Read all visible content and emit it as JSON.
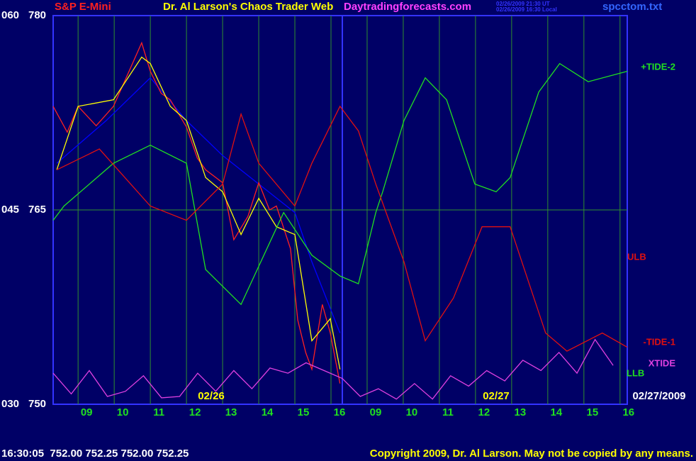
{
  "chart_data": {
    "type": "line",
    "title": "S&P E-Mini",
    "subtitle": "Dr. Al Larson's Chaos Trader Web",
    "site": "Daytradingforecasts.com",
    "timestamps": [
      "02/26/2009 21:30 UT",
      "02/26/2009 16:30 Local"
    ],
    "file": "spcctom.txt",
    "footer": "16:30:05  752.00 752.25 752.00 752.25",
    "copyright": "Copyright 2009, Dr. Al Larson. May not be copied by any means.",
    "annotations": [
      "02/26",
      "02/27",
      "02/27/2009",
      "ULB",
      "LLB"
    ],
    "xlim": [
      -0.69,
      15.2
    ],
    "ylim": [
      750,
      780
    ],
    "yticks": [
      750,
      765,
      780
    ],
    "y2lim": [
      30,
      60
    ],
    "y2ticks": [
      {
        "value": 30,
        "label": "030"
      },
      {
        "value": 45,
        "label": "045"
      },
      {
        "value": 60,
        "label": "060"
      }
    ],
    "xticks": [
      {
        "value": 0,
        "label": "09"
      },
      {
        "value": 1,
        "label": "10"
      },
      {
        "value": 2,
        "label": "11"
      },
      {
        "value": 3,
        "label": "12"
      },
      {
        "value": 4,
        "label": "13"
      },
      {
        "value": 5,
        "label": "14"
      },
      {
        "value": 6,
        "label": "15"
      },
      {
        "value": 7,
        "label": "16"
      },
      {
        "value": 8,
        "label": "09"
      },
      {
        "value": 9,
        "label": "10"
      },
      {
        "value": 10,
        "label": "11"
      },
      {
        "value": 11,
        "label": "12"
      },
      {
        "value": 12,
        "label": "13"
      },
      {
        "value": 13,
        "label": "14"
      },
      {
        "value": 14,
        "label": "15"
      },
      {
        "value": 15,
        "label": "16"
      }
    ],
    "grid": true,
    "series": [
      {
        "color": "#0000ff",
        "x": [
          -0.59,
          0.78,
          2,
          3,
          4,
          5,
          6,
          6.47,
          7.25
        ],
        "values": [
          768.6,
          771.9,
          775.2,
          771.9,
          769.2,
          767.0,
          764.8,
          761.0,
          755.5
        ]
      },
      {
        "color": "#ff2020",
        "x": [
          -0.69,
          -0.3,
          0,
          0.5,
          0.98,
          1.3,
          1.76,
          2,
          2.3,
          2.55,
          3,
          3.3,
          3.53,
          4,
          4.31,
          4.7,
          5,
          5.3,
          5.49,
          5.88,
          6.08,
          6.3,
          6.47,
          6.76,
          6.98,
          7.25
        ],
        "values": [
          773.0,
          771.0,
          773.0,
          771.5,
          773.0,
          775.0,
          777.9,
          775.7,
          774.0,
          773.5,
          771.4,
          769.0,
          768.1,
          767.1,
          762.7,
          764.5,
          767.1,
          765.0,
          765.3,
          762.0,
          756.5,
          754.0,
          752.7,
          757.7,
          755.5,
          751.6
        ]
      },
      {
        "color": "#ffff00",
        "x": [
          -0.59,
          0,
          0.98,
          1.76,
          2,
          2.55,
          3,
          3.53,
          4,
          4.51,
          5,
          5.49,
          6,
          6.47,
          6.98,
          7.25
        ],
        "values": [
          768.1,
          773.0,
          773.5,
          776.8,
          776.3,
          773.0,
          771.9,
          767.5,
          766.4,
          763.1,
          765.9,
          763.7,
          763.1,
          754.9,
          756.6,
          752.7
        ]
      },
      {
        "name": "+TIDE-2",
        "color": "#20e020",
        "x": [
          -0.69,
          -0.39,
          0.98,
          2,
          3,
          3.53,
          4.51,
          5.69,
          6.47,
          7.25,
          7.76,
          8.24,
          8.43,
          9.02,
          9.61,
          10.2,
          10.98,
          11.57,
          11.96,
          12.75,
          13.33,
          14.12,
          15.2
        ],
        "values": [
          764.2,
          765.3,
          768.6,
          770.0,
          768.6,
          760.4,
          757.7,
          764.8,
          761.5,
          759.9,
          759.3,
          764.8,
          766.4,
          771.9,
          775.2,
          773.5,
          767.0,
          766.4,
          767.5,
          774.1,
          776.3,
          774.9,
          775.7
        ]
      },
      {
        "name": "-TIDE-1",
        "color": "#e01010",
        "x": [
          -0.59,
          0.59,
          2,
          3,
          4,
          4.51,
          5,
          6,
          6.47,
          7.25,
          7.76,
          8.24,
          9.02,
          9.61,
          10.39,
          11.18,
          11.96,
          12.94,
          13.53,
          14.51,
          15.2
        ],
        "values": [
          768.1,
          769.7,
          765.3,
          764.2,
          767.0,
          772.4,
          768.6,
          765.3,
          768.6,
          773.0,
          771.1,
          767.0,
          761.0,
          754.9,
          758.2,
          763.7,
          763.7,
          755.5,
          754.1,
          755.5,
          754.4
        ]
      },
      {
        "name": "XTIDE",
        "color": "#e040e0",
        "x": [
          -0.69,
          -0.19,
          0.31,
          0.81,
          1.31,
          1.81,
          2.31,
          2.81,
          3.31,
          3.81,
          4.31,
          4.81,
          5.31,
          5.81,
          6.31,
          6.81,
          7.31,
          7.81,
          8.31,
          8.81,
          9.31,
          9.81,
          10.31,
          10.81,
          11.31,
          11.81,
          12.31,
          12.81,
          13.31,
          13.81,
          14.31,
          14.81
        ],
        "values": [
          752.4,
          750.8,
          752.6,
          750.6,
          751.0,
          752.2,
          750.5,
          750.6,
          752.4,
          751.0,
          752.6,
          751.2,
          752.8,
          752.4,
          753.2,
          752.6,
          752.0,
          750.6,
          751.2,
          750.4,
          751.6,
          750.4,
          752.2,
          751.4,
          752.6,
          751.8,
          753.4,
          752.6,
          754.0,
          752.4,
          755.0,
          753.0
        ]
      }
    ]
  }
}
